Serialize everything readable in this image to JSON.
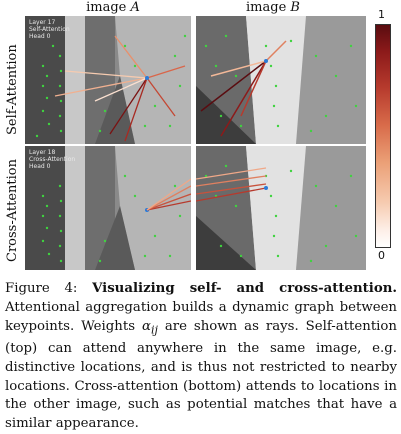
{
  "columns": {
    "a": {
      "prefix": "image ",
      "var": "A"
    },
    "b": {
      "prefix": "image ",
      "var": "B"
    }
  },
  "rows": {
    "self": "Self-Attention",
    "cross": "Cross-Attention"
  },
  "overlays": {
    "self_a": [
      "Layer 17",
      "Self-Attention",
      "Head 0"
    ],
    "cross_a": [
      "Layer 18",
      "Cross-Attention",
      "Head 0"
    ]
  },
  "colorbar": {
    "max_label": "1",
    "min_label": "0",
    "colors": [
      "#5a0c10",
      "#b63a2d",
      "#eba077",
      "#ffffff"
    ]
  },
  "caption": {
    "label": "Figure 4:",
    "title": "Visualizing self- and cross-attention.",
    "text1": "Attentional aggregation builds a dynamic graph between keypoints. Weights ",
    "weight_symbol": "α",
    "weight_sub": "ij",
    "text2": " are shown as rays. Self-attention (top) can attend anywhere in the same image, e.g. distinctive locations, and is thus not restricted to nearby locations. Cross-attention (bottom) attends to locations in the other image, such as potential matches that have a similar appearance."
  }
}
